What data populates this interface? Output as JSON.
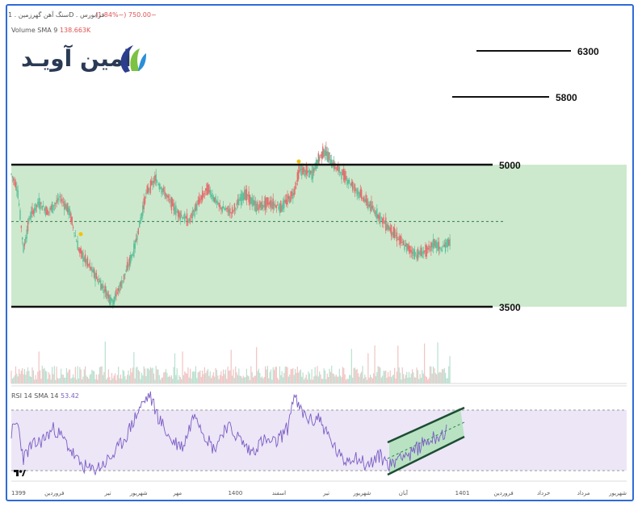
{
  "header": {
    "symbol": "سنگ آهن گهرزمین",
    "interval": "1D",
    "exchange": "فرابورس",
    "change": "−750.00 (−1.84%)",
    "volume_label": "Volume SMA 9",
    "volume_value": "138.663K"
  },
  "logo": {
    "text": "امین آویـد"
  },
  "rsi": {
    "label": "RSI 14 SMA 14",
    "value": "53.42"
  },
  "colors": {
    "up": "#5bbf9a",
    "down": "#e36d6d",
    "zone": "#cde9cd",
    "rsi_line": "#7b5cc4",
    "rsi_band": "#ece6f7",
    "frame": "#2f6bd8"
  },
  "chart_data": {
    "type": "line",
    "title": "",
    "x_labels": [
      "1399",
      "فروردین",
      "تیر",
      "شهریور",
      "مهر",
      "1400",
      "اسفند",
      "تیر",
      "شهریور",
      "آبان",
      "1401",
      "فروردین",
      "خرداد",
      "مرداد",
      "شهریور"
    ],
    "x_label_pos": [
      0.0,
      0.07,
      0.157,
      0.207,
      0.27,
      0.364,
      0.435,
      0.512,
      0.57,
      0.637,
      0.733,
      0.8,
      0.865,
      0.93,
      1.0
    ],
    "price_path": [
      [
        0.0,
        4900
      ],
      [
        0.01,
        4750
      ],
      [
        0.02,
        4100
      ],
      [
        0.03,
        4450
      ],
      [
        0.045,
        4600
      ],
      [
        0.06,
        4500
      ],
      [
        0.08,
        4650
      ],
      [
        0.095,
        4500
      ],
      [
        0.11,
        4100
      ],
      [
        0.13,
        3900
      ],
      [
        0.15,
        3700
      ],
      [
        0.165,
        3550
      ],
      [
        0.18,
        3750
      ],
      [
        0.2,
        4100
      ],
      [
        0.22,
        4700
      ],
      [
        0.235,
        4850
      ],
      [
        0.25,
        4700
      ],
      [
        0.27,
        4500
      ],
      [
        0.29,
        4400
      ],
      [
        0.305,
        4600
      ],
      [
        0.32,
        4750
      ],
      [
        0.34,
        4550
      ],
      [
        0.36,
        4500
      ],
      [
        0.38,
        4700
      ],
      [
        0.4,
        4550
      ],
      [
        0.42,
        4600
      ],
      [
        0.44,
        4550
      ],
      [
        0.46,
        4700
      ],
      [
        0.47,
        4950
      ],
      [
        0.49,
        4900
      ],
      [
        0.5,
        5050
      ],
      [
        0.51,
        5150
      ],
      [
        0.525,
        5000
      ],
      [
        0.54,
        4900
      ],
      [
        0.56,
        4750
      ],
      [
        0.58,
        4600
      ],
      [
        0.6,
        4450
      ],
      [
        0.62,
        4300
      ],
      [
        0.64,
        4150
      ],
      [
        0.66,
        4050
      ],
      [
        0.68,
        4100
      ],
      [
        0.69,
        4180
      ],
      [
        0.7,
        4100
      ],
      [
        0.715,
        4200
      ]
    ],
    "levels": [
      {
        "value": 6300,
        "label": "6300"
      },
      {
        "value": 5800,
        "label": "5800"
      },
      {
        "value": 5000,
        "label": "5000"
      },
      {
        "value": 3500,
        "label": "3500"
      }
    ],
    "dashed_level": 4400,
    "zone": [
      3500,
      5000
    ],
    "rsi_path": [
      [
        0.0,
        55
      ],
      [
        0.01,
        62
      ],
      [
        0.02,
        38
      ],
      [
        0.03,
        45
      ],
      [
        0.05,
        50
      ],
      [
        0.07,
        58
      ],
      [
        0.09,
        48
      ],
      [
        0.11,
        35
      ],
      [
        0.13,
        30
      ],
      [
        0.15,
        34
      ],
      [
        0.17,
        42
      ],
      [
        0.19,
        55
      ],
      [
        0.21,
        72
      ],
      [
        0.225,
        80
      ],
      [
        0.24,
        65
      ],
      [
        0.26,
        50
      ],
      [
        0.28,
        46
      ],
      [
        0.3,
        70
      ],
      [
        0.31,
        58
      ],
      [
        0.33,
        44
      ],
      [
        0.35,
        60
      ],
      [
        0.37,
        52
      ],
      [
        0.39,
        42
      ],
      [
        0.41,
        50
      ],
      [
        0.43,
        48
      ],
      [
        0.45,
        58
      ],
      [
        0.46,
        80
      ],
      [
        0.47,
        70
      ],
      [
        0.49,
        62
      ],
      [
        0.5,
        66
      ],
      [
        0.52,
        50
      ],
      [
        0.54,
        36
      ],
      [
        0.56,
        40
      ],
      [
        0.58,
        33
      ],
      [
        0.6,
        40
      ],
      [
        0.62,
        33
      ],
      [
        0.635,
        42
      ],
      [
        0.65,
        40
      ],
      [
        0.67,
        48
      ],
      [
        0.69,
        52
      ],
      [
        0.71,
        56
      ]
    ],
    "rsi_band": [
      30,
      70
    ]
  }
}
